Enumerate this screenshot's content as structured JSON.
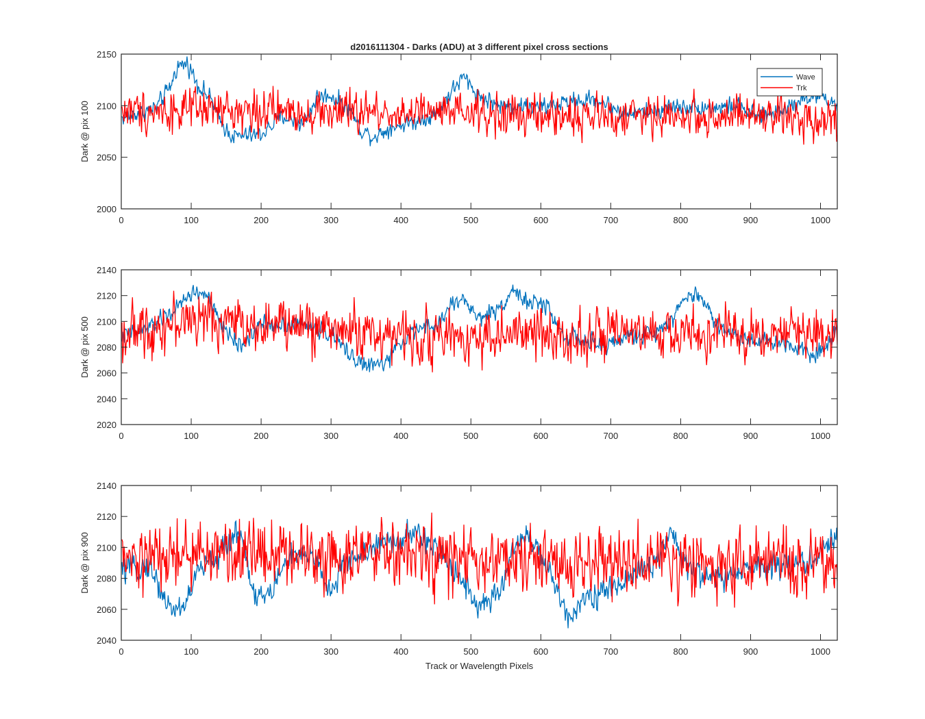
{
  "figure": {
    "title": "d2016111304 - Darks (ADU) at 3 different pixel cross sections",
    "xlabel": "Track or Wavelength Pixels"
  },
  "colors": {
    "wave": "#0072BD",
    "trk": "#FF0000",
    "axis": "#262626"
  },
  "legend": {
    "placement": "top-right of first panel",
    "entries": [
      "Wave",
      "Trk"
    ]
  },
  "chart_data": [
    {
      "type": "line",
      "ylabel": "Dark @ pix 100",
      "xlim": [
        0,
        1024
      ],
      "ylim": [
        2000,
        2150
      ],
      "xticks": [
        0,
        100,
        200,
        300,
        400,
        500,
        600,
        700,
        800,
        900,
        1000
      ],
      "yticks": [
        2000,
        2050,
        2100,
        2150
      ],
      "grid": false,
      "series": [
        {
          "name": "Wave",
          "color": "#0072BD",
          "noise": 5,
          "knots": [
            [
              0,
              2088
            ],
            [
              20,
              2092
            ],
            [
              50,
              2098
            ],
            [
              70,
              2118
            ],
            [
              80,
              2138
            ],
            [
              95,
              2141
            ],
            [
              110,
              2120
            ],
            [
              130,
              2105
            ],
            [
              140,
              2085
            ],
            [
              160,
              2070
            ],
            [
              200,
              2072
            ],
            [
              230,
              2090
            ],
            [
              260,
              2082
            ],
            [
              280,
              2108
            ],
            [
              300,
              2110
            ],
            [
              330,
              2095
            ],
            [
              340,
              2078
            ],
            [
              360,
              2070
            ],
            [
              390,
              2080
            ],
            [
              420,
              2085
            ],
            [
              450,
              2092
            ],
            [
              470,
              2112
            ],
            [
              490,
              2128
            ],
            [
              510,
              2110
            ],
            [
              540,
              2100
            ],
            [
              570,
              2100
            ],
            [
              600,
              2098
            ],
            [
              640,
              2104
            ],
            [
              680,
              2106
            ],
            [
              720,
              2092
            ],
            [
              760,
              2095
            ],
            [
              800,
              2100
            ],
            [
              850,
              2098
            ],
            [
              880,
              2100
            ],
            [
              910,
              2088
            ],
            [
              940,
              2095
            ],
            [
              980,
              2108
            ],
            [
              1000,
              2110
            ],
            [
              1024,
              2100
            ]
          ]
        },
        {
          "name": "Trk",
          "color": "#FF0000",
          "noise": 12,
          "knots": [
            [
              0,
              2095
            ],
            [
              200,
              2095
            ],
            [
              400,
              2093
            ],
            [
              600,
              2090
            ],
            [
              800,
              2090
            ],
            [
              1024,
              2088
            ]
          ]
        }
      ]
    },
    {
      "type": "line",
      "ylabel": "Dark @ pix 500",
      "xlim": [
        0,
        1024
      ],
      "ylim": [
        2020,
        2140
      ],
      "xticks": [
        0,
        100,
        200,
        300,
        400,
        500,
        600,
        700,
        800,
        900,
        1000
      ],
      "yticks": [
        2020,
        2040,
        2060,
        2080,
        2100,
        2120,
        2140
      ],
      "grid": false,
      "series": [
        {
          "name": "Wave",
          "color": "#0072BD",
          "noise": 4,
          "knots": [
            [
              0,
              2088
            ],
            [
              40,
              2095
            ],
            [
              80,
              2110
            ],
            [
              100,
              2122
            ],
            [
              120,
              2122
            ],
            [
              140,
              2100
            ],
            [
              170,
              2080
            ],
            [
              200,
              2098
            ],
            [
              260,
              2098
            ],
            [
              300,
              2090
            ],
            [
              320,
              2078
            ],
            [
              350,
              2065
            ],
            [
              380,
              2068
            ],
            [
              400,
              2085
            ],
            [
              430,
              2095
            ],
            [
              450,
              2095
            ],
            [
              470,
              2112
            ],
            [
              490,
              2118
            ],
            [
              510,
              2102
            ],
            [
              540,
              2110
            ],
            [
              560,
              2125
            ],
            [
              580,
              2115
            ],
            [
              610,
              2112
            ],
            [
              630,
              2090
            ],
            [
              660,
              2085
            ],
            [
              690,
              2080
            ],
            [
              720,
              2088
            ],
            [
              760,
              2090
            ],
            [
              790,
              2105
            ],
            [
              810,
              2120
            ],
            [
              830,
              2120
            ],
            [
              850,
              2098
            ],
            [
              880,
              2088
            ],
            [
              920,
              2085
            ],
            [
              960,
              2082
            ],
            [
              990,
              2075
            ],
            [
              1010,
              2080
            ],
            [
              1024,
              2098
            ]
          ]
        },
        {
          "name": "Trk",
          "color": "#FF0000",
          "noise": 12,
          "knots": [
            [
              0,
              2090
            ],
            [
              100,
              2102
            ],
            [
              200,
              2098
            ],
            [
              300,
              2095
            ],
            [
              400,
              2088
            ],
            [
              500,
              2088
            ],
            [
              600,
              2090
            ],
            [
              700,
              2088
            ],
            [
              800,
              2090
            ],
            [
              900,
              2090
            ],
            [
              1024,
              2092
            ]
          ]
        }
      ]
    },
    {
      "type": "line",
      "ylabel": "Dark @ pix 900",
      "xlim": [
        0,
        1024
      ],
      "ylim": [
        2040,
        2140
      ],
      "xticks": [
        0,
        100,
        200,
        300,
        400,
        500,
        600,
        700,
        800,
        900,
        1000
      ],
      "yticks": [
        2040,
        2060,
        2080,
        2100,
        2120,
        2140
      ],
      "grid": false,
      "series": [
        {
          "name": "Wave",
          "color": "#0072BD",
          "noise": 5,
          "knots": [
            [
              0,
              2085
            ],
            [
              40,
              2088
            ],
            [
              70,
              2060
            ],
            [
              90,
              2062
            ],
            [
              110,
              2085
            ],
            [
              140,
              2095
            ],
            [
              170,
              2112
            ],
            [
              190,
              2070
            ],
            [
              210,
              2068
            ],
            [
              240,
              2095
            ],
            [
              280,
              2092
            ],
            [
              300,
              2070
            ],
            [
              320,
              2090
            ],
            [
              360,
              2100
            ],
            [
              400,
              2105
            ],
            [
              420,
              2110
            ],
            [
              450,
              2098
            ],
            [
              480,
              2085
            ],
            [
              510,
              2062
            ],
            [
              540,
              2068
            ],
            [
              560,
              2100
            ],
            [
              580,
              2110
            ],
            [
              610,
              2085
            ],
            [
              640,
              2055
            ],
            [
              660,
              2068
            ],
            [
              700,
              2072
            ],
            [
              740,
              2085
            ],
            [
              770,
              2092
            ],
            [
              790,
              2110
            ],
            [
              810,
              2085
            ],
            [
              850,
              2080
            ],
            [
              880,
              2082
            ],
            [
              920,
              2090
            ],
            [
              960,
              2088
            ],
            [
              990,
              2092
            ],
            [
              1010,
              2100
            ],
            [
              1024,
              2110
            ]
          ]
        },
        {
          "name": "Trk",
          "color": "#FF0000",
          "noise": 13,
          "knots": [
            [
              0,
              2090
            ],
            [
              100,
              2095
            ],
            [
              200,
              2098
            ],
            [
              300,
              2095
            ],
            [
              400,
              2095
            ],
            [
              500,
              2090
            ],
            [
              600,
              2090
            ],
            [
              700,
              2090
            ],
            [
              800,
              2090
            ],
            [
              900,
              2090
            ],
            [
              1024,
              2088
            ]
          ]
        }
      ]
    }
  ]
}
